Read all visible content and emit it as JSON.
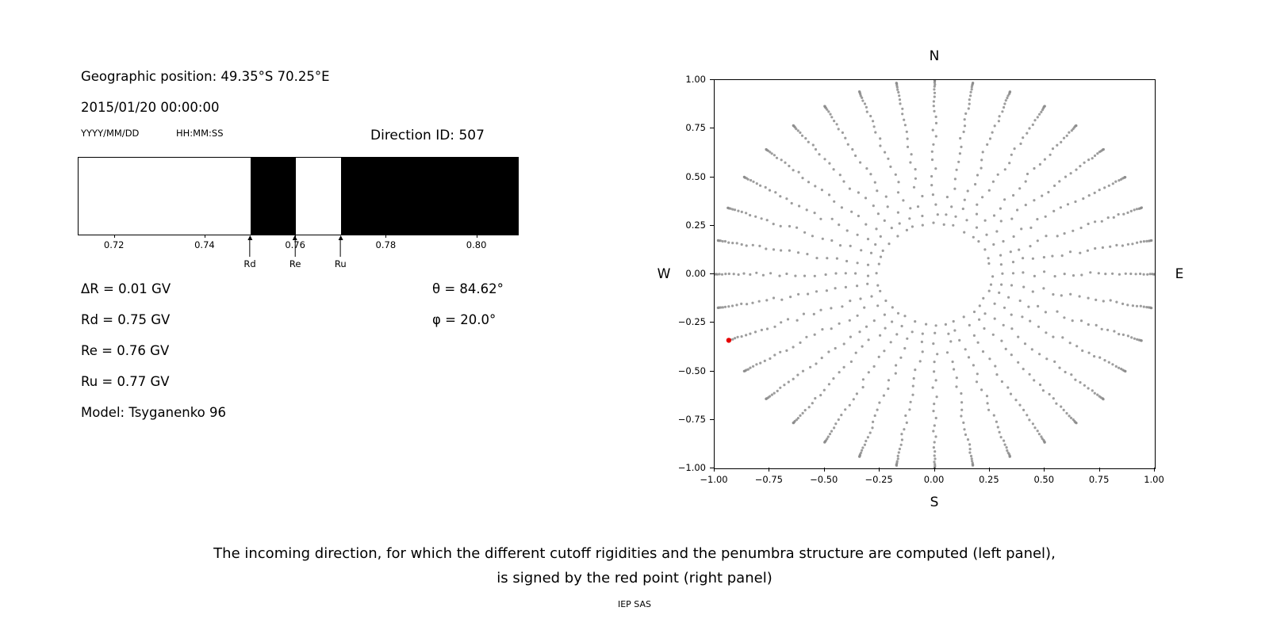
{
  "header": {
    "geo_position": "Geographic position: 49.35°S 70.25°E",
    "datetime": "2015/01/20 00:00:00",
    "date_format_label": "YYYY/MM/DD",
    "time_format_label": "HH:MM:SS",
    "direction_id": "Direction ID: 507"
  },
  "info": {
    "delta_r": "ΔR = 0.01 GV",
    "rd": "Rd = 0.75 GV",
    "re": "Re = 0.76 GV",
    "ru": "Ru = 0.77 GV",
    "model": "Model: Tsyganenko 96",
    "theta": "θ = 84.62°",
    "phi": "φ = 20.0°"
  },
  "caption": {
    "line1": "The incoming direction, for which the different cutoff rigidities and the penumbra structure are computed (left panel),",
    "line2": "is signed by the red point (right panel)",
    "credit": "IEP SAS"
  },
  "chart_data": [
    {
      "type": "bar",
      "title": "penumbra structure",
      "xlim": [
        0.712,
        0.809
      ],
      "xtick_labels": [
        "0.72",
        "0.74",
        "0.76",
        "0.78",
        "0.80"
      ],
      "xtick_values": [
        0.72,
        0.74,
        0.76,
        0.78,
        0.8
      ],
      "bands": [
        {
          "from": 0.712,
          "to": 0.75,
          "color": "#ffffff"
        },
        {
          "from": 0.75,
          "to": 0.76,
          "color": "#000000"
        },
        {
          "from": 0.76,
          "to": 0.77,
          "color": "#ffffff"
        },
        {
          "from": 0.77,
          "to": 0.809,
          "color": "#000000"
        }
      ],
      "markers": [
        {
          "label": "Rd",
          "x": 0.75
        },
        {
          "label": "Re",
          "x": 0.76
        },
        {
          "label": "Ru",
          "x": 0.77
        }
      ]
    },
    {
      "type": "scatter",
      "title": "incoming direction grid",
      "xlim": [
        -1,
        1
      ],
      "ylim": [
        -1,
        1
      ],
      "xtick_labels": [
        "−1.00",
        "−0.75",
        "−0.50",
        "−0.25",
        "0.00",
        "0.25",
        "0.50",
        "0.75",
        "1.00"
      ],
      "xtick_values": [
        -1,
        -0.75,
        -0.5,
        -0.25,
        0,
        0.25,
        0.5,
        0.75,
        1
      ],
      "ytick_labels": [
        "1.00",
        "0.75",
        "0.50",
        "0.25",
        "0.00",
        "−0.25",
        "−0.50",
        "−0.75",
        "−1.00"
      ],
      "ytick_values": [
        1,
        0.75,
        0.5,
        0.25,
        0,
        -0.25,
        -0.5,
        -0.75,
        -1
      ],
      "compass": {
        "top": "N",
        "bottom": "S",
        "left": "W",
        "right": "E"
      },
      "grid_points": {
        "projection": "x = -sin(zenith)·cos(azimuth), y = -sin(zenith)·sin(azimuth)",
        "azimuth_start_deg": 0,
        "azimuth_step_deg": 10,
        "azimuth_count": 36,
        "zenith_start_deg": 15,
        "zenith_step_deg": 3,
        "zenith_end_deg": 90
      },
      "dot_color": "#8c8c8c",
      "selected_point": {
        "x": -0.9356,
        "y": -0.3405,
        "theta_deg": 84.62,
        "phi_deg": 20.0,
        "color": "#e60000"
      }
    }
  ]
}
